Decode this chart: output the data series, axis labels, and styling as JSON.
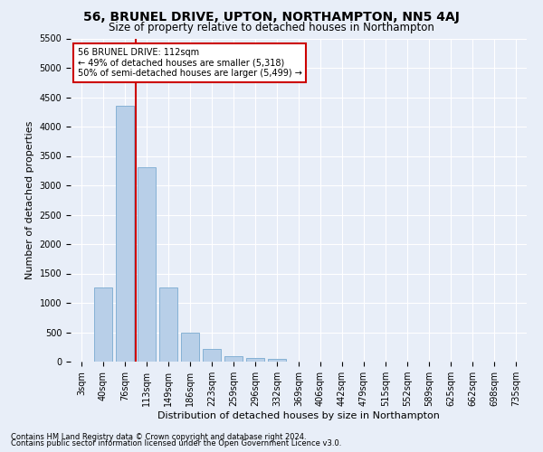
{
  "title": "56, BRUNEL DRIVE, UPTON, NORTHAMPTON, NN5 4AJ",
  "subtitle": "Size of property relative to detached houses in Northampton",
  "xlabel": "Distribution of detached houses by size in Northampton",
  "ylabel": "Number of detached properties",
  "footnote1": "Contains HM Land Registry data © Crown copyright and database right 2024.",
  "footnote2": "Contains public sector information licensed under the Open Government Licence v3.0.",
  "categories": [
    "3sqm",
    "40sqm",
    "76sqm",
    "113sqm",
    "149sqm",
    "186sqm",
    "223sqm",
    "259sqm",
    "296sqm",
    "332sqm",
    "369sqm",
    "406sqm",
    "442sqm",
    "479sqm",
    "515sqm",
    "552sqm",
    "589sqm",
    "625sqm",
    "662sqm",
    "698sqm",
    "735sqm"
  ],
  "values": [
    0,
    1260,
    4350,
    3310,
    1260,
    490,
    215,
    90,
    55,
    50,
    0,
    0,
    0,
    0,
    0,
    0,
    0,
    0,
    0,
    0,
    0
  ],
  "bar_color": "#b8cfe8",
  "bar_edge_color": "#7aaad0",
  "vline_color": "#cc0000",
  "annotation_text": "56 BRUNEL DRIVE: 112sqm\n← 49% of detached houses are smaller (5,318)\n50% of semi-detached houses are larger (5,499) →",
  "annotation_box_color": "#ffffff",
  "annotation_box_edge": "#cc0000",
  "ylim": [
    0,
    5500
  ],
  "yticks": [
    0,
    500,
    1000,
    1500,
    2000,
    2500,
    3000,
    3500,
    4000,
    4500,
    5000,
    5500
  ],
  "background_color": "#e8eef8",
  "grid_color": "#ffffff",
  "title_fontsize": 10,
  "subtitle_fontsize": 8.5,
  "axis_label_fontsize": 8,
  "tick_fontsize": 7,
  "footnote_fontsize": 6
}
